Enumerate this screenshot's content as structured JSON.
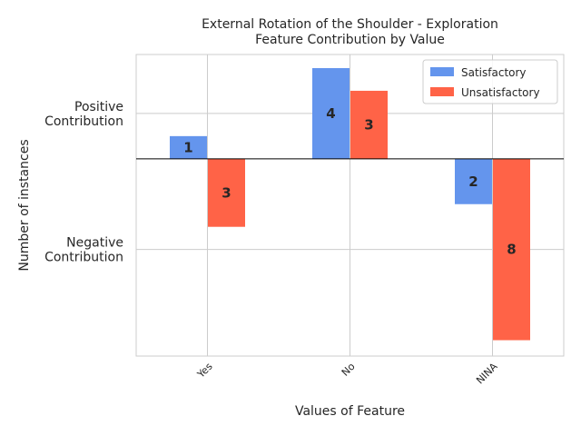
{
  "chart_data": {
    "type": "bar",
    "title_lines": [
      "External Rotation of the Shoulder - Exploration",
      "Feature Contribution by Value"
    ],
    "xlabel": "Values of Feature",
    "ylabel": "Number of instances",
    "categories": [
      "Yes",
      "No",
      "NINA"
    ],
    "series": [
      {
        "name": "Satisfactory",
        "values": [
          1,
          4,
          -2
        ],
        "labels": [
          "1",
          "4",
          "2"
        ],
        "color": "#6495ED"
      },
      {
        "name": "Unsatisfactory",
        "values": [
          -3,
          3,
          -8
        ],
        "labels": [
          "3",
          "3",
          "8"
        ],
        "color": "#FF6347"
      }
    ],
    "yticks": [
      {
        "value": 2,
        "lines": [
          "Positive",
          "Contribution"
        ]
      },
      {
        "value": -4,
        "lines": [
          "Negative",
          "Contribution"
        ]
      }
    ],
    "ylim": [
      -8.7,
      4.6
    ],
    "grid": true,
    "legend": "top-right",
    "xtick_rotation": 45
  }
}
